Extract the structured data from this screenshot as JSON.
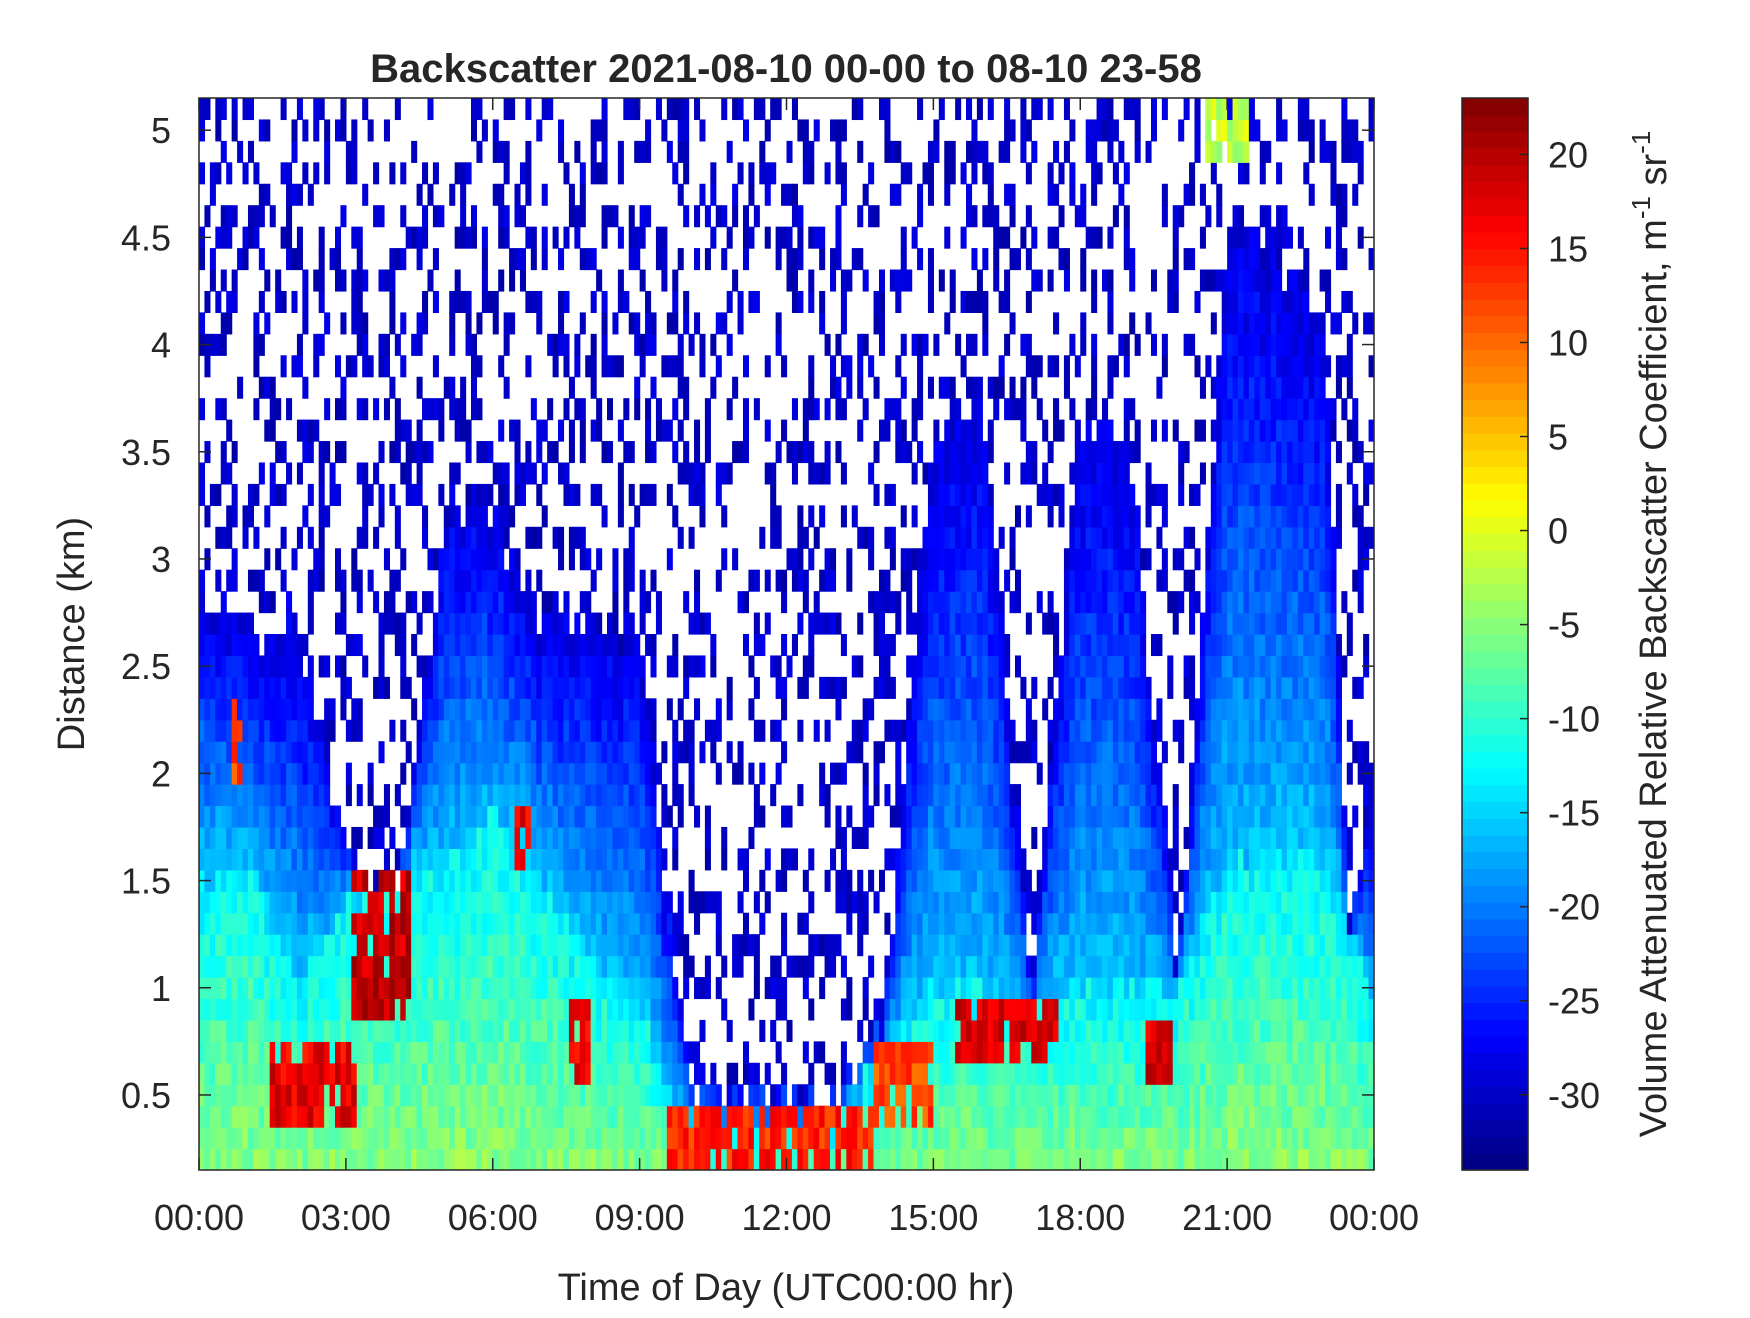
{
  "chart_data": {
    "type": "heatmap",
    "title": "Backscatter 2021-08-10 00-00 to 08-10 23-58",
    "xlabel": "Time of Day (UTC00:00 hr)",
    "ylabel": "Distance (km)",
    "colorbar_label_main": "Volume Attenuated Relative Backscatter Coefficient, m",
    "colorbar_label_sup1": "-1",
    "colorbar_label_mid": " sr",
    "colorbar_label_sup2": "-1",
    "colormap": "jet",
    "xlim_hours": [
      0,
      24
    ],
    "ylim_km": [
      0.15,
      5.15
    ],
    "clim": [
      -34,
      23
    ],
    "grid": false,
    "x_ticks": [
      {
        "value": 0,
        "label": "00:00"
      },
      {
        "value": 3,
        "label": "03:00"
      },
      {
        "value": 6,
        "label": "06:00"
      },
      {
        "value": 9,
        "label": "09:00"
      },
      {
        "value": 12,
        "label": "12:00"
      },
      {
        "value": 15,
        "label": "15:00"
      },
      {
        "value": 18,
        "label": "18:00"
      },
      {
        "value": 21,
        "label": "21:00"
      },
      {
        "value": 24,
        "label": "00:00"
      }
    ],
    "y_ticks": [
      {
        "value": 0.5,
        "label": "0.5"
      },
      {
        "value": 1,
        "label": "1"
      },
      {
        "value": 1.5,
        "label": "1.5"
      },
      {
        "value": 2,
        "label": "2"
      },
      {
        "value": 2.5,
        "label": "2.5"
      },
      {
        "value": 3,
        "label": "3"
      },
      {
        "value": 3.5,
        "label": "3.5"
      },
      {
        "value": 4,
        "label": "4"
      },
      {
        "value": 4.5,
        "label": "4.5"
      },
      {
        "value": 5,
        "label": "5"
      }
    ],
    "colorbar_ticks": [
      {
        "value": 20,
        "label": "20"
      },
      {
        "value": 15,
        "label": "15"
      },
      {
        "value": 10,
        "label": "10"
      },
      {
        "value": 5,
        "label": "5"
      },
      {
        "value": 0,
        "label": "0"
      },
      {
        "value": -5,
        "label": "-5"
      },
      {
        "value": -10,
        "label": "-10"
      },
      {
        "value": -15,
        "label": "-15"
      },
      {
        "value": -20,
        "label": "-20"
      },
      {
        "value": -25,
        "label": "-25"
      },
      {
        "value": -30,
        "label": "-30"
      }
    ],
    "features": {
      "boundary_layer_top_km": [
        [
          0,
          2.8
        ],
        [
          1,
          2.7
        ],
        [
          2,
          2.7
        ],
        [
          3,
          1.6
        ],
        [
          4,
          1.3
        ],
        [
          5,
          3.2
        ],
        [
          6,
          3.2
        ],
        [
          7,
          2.7
        ],
        [
          8,
          2.8
        ],
        [
          9,
          2.6
        ],
        [
          10,
          0.5
        ],
        [
          11,
          0.5
        ],
        [
          12,
          0.5
        ],
        [
          13,
          0.5
        ],
        [
          14,
          0.9
        ],
        [
          15,
          3.6
        ],
        [
          16,
          3.7
        ],
        [
          17,
          1.0
        ],
        [
          18,
          3.6
        ],
        [
          19,
          3.6
        ],
        [
          20,
          1.0
        ],
        [
          21,
          4.6
        ],
        [
          22,
          4.4
        ],
        [
          23,
          4.2
        ],
        [
          23.5,
          1.2
        ],
        [
          24,
          2.0
        ]
      ],
      "aerosol_layer_top_km": [
        [
          0,
          1.5
        ],
        [
          1,
          1.6
        ],
        [
          2,
          1.0
        ],
        [
          3,
          1.4
        ],
        [
          4,
          1.5
        ],
        [
          5,
          1.6
        ],
        [
          6,
          1.8
        ],
        [
          7,
          1.5
        ],
        [
          8,
          1.1
        ],
        [
          9,
          0.9
        ],
        [
          10,
          0.35
        ],
        [
          11,
          0.35
        ],
        [
          12,
          0.35
        ],
        [
          13,
          0.35
        ],
        [
          14,
          0.7
        ],
        [
          15,
          1.0
        ],
        [
          16,
          1.0
        ],
        [
          17,
          0.9
        ],
        [
          18,
          1.0
        ],
        [
          19,
          1.0
        ],
        [
          20,
          1.0
        ],
        [
          21,
          1.6
        ],
        [
          22,
          1.6
        ],
        [
          23,
          1.6
        ],
        [
          24,
          0.9
        ]
      ],
      "strong_echo_layers": [
        {
          "t_start": 3.1,
          "t_end": 4.3,
          "z_bottom": 0.9,
          "z_top": 1.5,
          "value": 19
        },
        {
          "t_start": 1.5,
          "t_end": 3.2,
          "z_bottom": 0.4,
          "z_top": 0.75,
          "value": 17
        },
        {
          "t_start": 9.6,
          "t_end": 13.8,
          "z_bottom": 0.15,
          "z_top": 0.45,
          "value": 14
        },
        {
          "t_start": 13.8,
          "t_end": 15.0,
          "z_bottom": 0.35,
          "z_top": 0.75,
          "value": 12
        },
        {
          "t_start": 15.5,
          "t_end": 17.6,
          "z_bottom": 0.65,
          "z_top": 0.95,
          "value": 18
        },
        {
          "t_start": 19.3,
          "t_end": 19.9,
          "z_bottom": 0.6,
          "z_top": 0.8,
          "value": 18
        },
        {
          "t_start": 6.4,
          "t_end": 6.8,
          "z_bottom": 1.6,
          "z_top": 1.85,
          "value": 17
        },
        {
          "t_start": 7.6,
          "t_end": 8.0,
          "z_bottom": 0.6,
          "z_top": 0.95,
          "value": 17
        },
        {
          "t_start": 0.7,
          "t_end": 0.9,
          "z_bottom": 2.0,
          "z_top": 2.35,
          "value": 12
        },
        {
          "t_start": 20.6,
          "t_end": 21.4,
          "z_bottom": 4.9,
          "z_top": 5.15,
          "value": -2
        }
      ]
    }
  }
}
